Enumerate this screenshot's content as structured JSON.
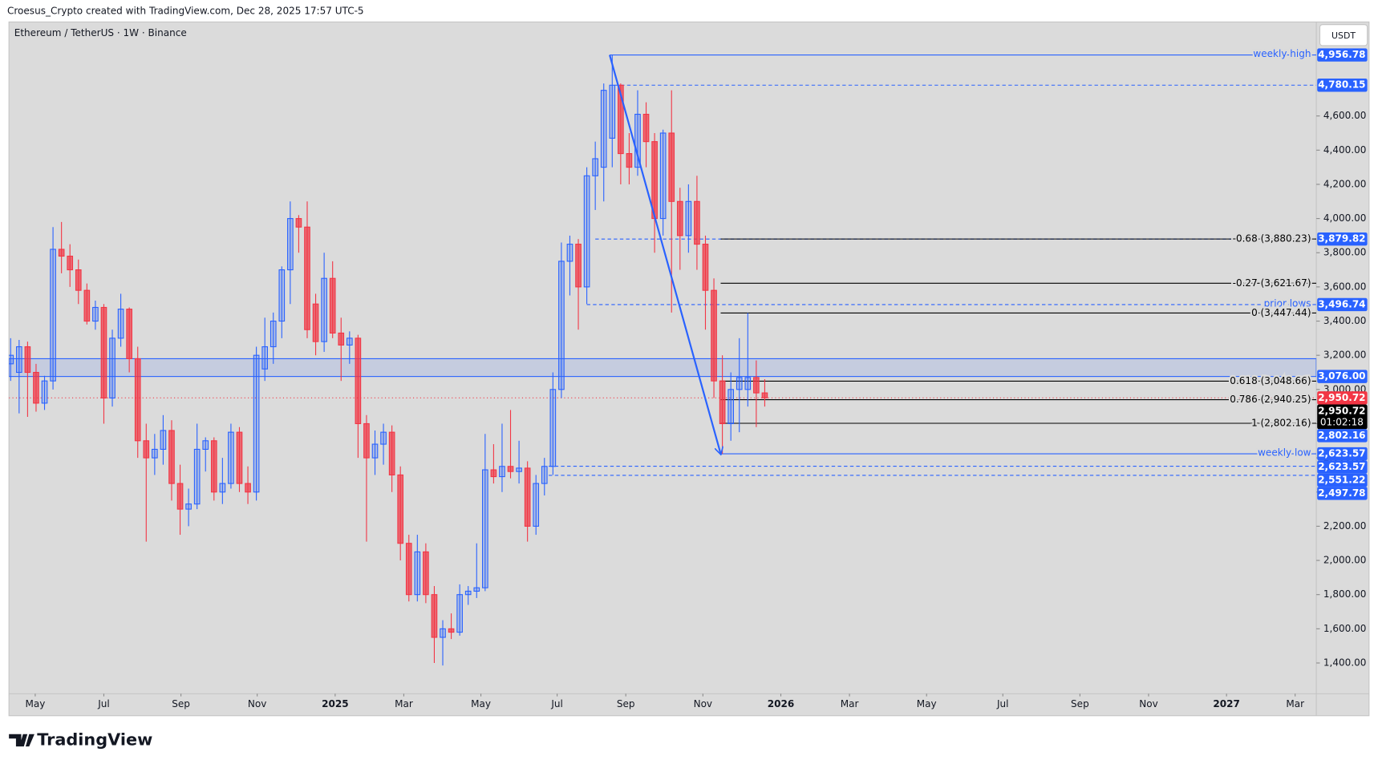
{
  "chart_data": {
    "type": "candlestick",
    "credit": "Croesus_Crypto created with TradingView.com, Dec 28, 2025 17:57 UTC-5",
    "title": "Ethereum / TetherUS · 1W · Binance",
    "currency": "USDT",
    "brand": "TradingView",
    "countdown": "01:02:18",
    "up_color": "#2962ff",
    "down_color": "#f23645",
    "open": [
      3150,
      3100,
      3250,
      3100,
      2920,
      3050,
      3820,
      3780,
      3700,
      3580,
      3400,
      3480,
      2950,
      3300,
      3470,
      3180,
      2700,
      2600,
      2650,
      2760,
      2450,
      2300,
      2330,
      2650,
      2700,
      2400,
      2450,
      2750,
      2450,
      2400,
      3120,
      3250,
      3400,
      3700,
      4000,
      3950,
      3500,
      3280,
      3650,
      3330,
      3260,
      3300,
      2800,
      2600,
      2680,
      2750,
      2500,
      2100,
      1800,
      2050,
      1800,
      1550,
      1600,
      1580,
      1800,
      1820,
      1840,
      2530,
      2490,
      2550,
      2520,
      2540,
      2200,
      2450,
      2550,
      3000,
      3750,
      3850,
      3600,
      4250,
      4300,
      4470,
      4780,
      4380,
      4300,
      4610,
      4450,
      4000,
      4500,
      4100,
      3900,
      4100,
      3850,
      3580,
      3050,
      2800,
      3000,
      3000,
      3070,
      2980
    ],
    "high": [
      3300,
      3290,
      3280,
      3150,
      3080,
      3950,
      3980,
      3850,
      3760,
      3620,
      3520,
      3500,
      3350,
      3560,
      3480,
      3250,
      2800,
      2740,
      2850,
      2820,
      2560,
      2420,
      2800,
      2720,
      2720,
      2600,
      2800,
      2780,
      2550,
      3250,
      3420,
      3450,
      3720,
      4100,
      4020,
      4100,
      3560,
      3800,
      3750,
      3420,
      3340,
      3320,
      2850,
      2760,
      2800,
      2790,
      2550,
      2150,
      2150,
      2100,
      1850,
      1650,
      1690,
      1860,
      1850,
      2100,
      2740,
      2680,
      2800,
      2880,
      2700,
      2580,
      2500,
      2600,
      3100,
      3860,
      3900,
      3880,
      4300,
      4450,
      4790,
      4956.78,
      4790,
      4500,
      4750,
      4680,
      4500,
      4520,
      4750,
      4180,
      4200,
      4250,
      3900,
      3650,
      3200,
      3100,
      3300,
      3447.44,
      3170,
      3060
    ],
    "low": [
      3050,
      2860,
      2840,
      2870,
      2880,
      3000,
      3680,
      3600,
      3500,
      3380,
      3350,
      2800,
      2900,
      3250,
      3100,
      2600,
      2110,
      2500,
      2560,
      2350,
      2150,
      2200,
      2300,
      2520,
      2350,
      2330,
      2420,
      2400,
      2330,
      2350,
      3050,
      3150,
      3300,
      3500,
      3800,
      3300,
      3200,
      3220,
      3300,
      3050,
      3150,
      2600,
      2110,
      2500,
      2560,
      2400,
      2000,
      1760,
      1760,
      1750,
      1400,
      1385,
      1540,
      1560,
      1740,
      1780,
      1820,
      2450,
      2400,
      2480,
      2450,
      2110,
      2150,
      2380,
      2500,
      2950,
      3550,
      3350,
      3500,
      4050,
      4100,
      4300,
      4200,
      4200,
      4250,
      4300,
      3800,
      3900,
      3450,
      3700,
      3800,
      3700,
      3350,
      2950,
      2623.57,
      2700,
      2750,
      2900,
      2780,
      2900
    ],
    "close": [
      3200,
      3250,
      3100,
      2920,
      3050,
      3820,
      3780,
      3700,
      3580,
      3400,
      3480,
      2950,
      3300,
      3470,
      3180,
      2700,
      2600,
      2650,
      2760,
      2450,
      2300,
      2330,
      2650,
      2700,
      2400,
      2450,
      2750,
      2450,
      2400,
      3200,
      3250,
      3400,
      3700,
      4000,
      3950,
      3350,
      3280,
      3650,
      3330,
      3260,
      3300,
      2800,
      2600,
      2680,
      2750,
      2500,
      2100,
      1800,
      2050,
      1800,
      1550,
      1600,
      1580,
      1800,
      1820,
      1840,
      2530,
      2490,
      2550,
      2520,
      2540,
      2200,
      2450,
      2550,
      3000,
      3750,
      3850,
      3600,
      4250,
      4350,
      4750,
      4780,
      4380,
      4300,
      4610,
      4450,
      4000,
      4500,
      4100,
      3900,
      4100,
      3850,
      3580,
      3050,
      2800,
      3000,
      3070,
      3070,
      2980,
      2950.72
    ],
    "xlim": [
      -0.2,
      154.1
    ],
    "xticks": [
      {
        "value": 2.9,
        "label": "May"
      },
      {
        "value": 11.0,
        "label": "Jul"
      },
      {
        "value": 20.1,
        "label": "Sep"
      },
      {
        "value": 29.1,
        "label": "Nov"
      },
      {
        "value": 38.3,
        "label": "2025"
      },
      {
        "value": 46.4,
        "label": "Mar"
      },
      {
        "value": 55.5,
        "label": "May"
      },
      {
        "value": 64.5,
        "label": "Jul"
      },
      {
        "value": 72.6,
        "label": "Sep"
      },
      {
        "value": 81.7,
        "label": "Nov"
      },
      {
        "value": 90.9,
        "label": "2026"
      },
      {
        "value": 99.0,
        "label": "Mar"
      },
      {
        "value": 108.1,
        "label": "May"
      },
      {
        "value": 117.1,
        "label": "Jul"
      },
      {
        "value": 126.2,
        "label": "Sep"
      },
      {
        "value": 134.3,
        "label": "Nov"
      },
      {
        "value": 143.5,
        "label": "2027"
      },
      {
        "value": 151.6,
        "label": "Mar"
      }
    ],
    "ylim": [
      1220,
      5150
    ],
    "yticks": [
      {
        "value": 1400,
        "label": "1,400.00"
      },
      {
        "value": 1600,
        "label": "1,600.00"
      },
      {
        "value": 1800,
        "label": "1,800.00"
      },
      {
        "value": 2000,
        "label": "2,000.00"
      },
      {
        "value": 2200,
        "label": "2,200.00"
      },
      {
        "value": 2400,
        "label": "2,400.00"
      },
      {
        "value": 2600,
        "label": "2,600.00"
      },
      {
        "value": 2800,
        "label": "2,800.00"
      },
      {
        "value": 3000,
        "label": "3,000.00"
      },
      {
        "value": 3200,
        "label": "3,200.00"
      },
      {
        "value": 3400,
        "label": "3,400.00"
      },
      {
        "value": 3600,
        "label": "3,600.00"
      },
      {
        "value": 3800,
        "label": "3,800.00"
      },
      {
        "value": 4000,
        "label": "4,000.00"
      },
      {
        "value": 4200,
        "label": "4,200.00"
      },
      {
        "value": 4400,
        "label": "4,400.00"
      },
      {
        "value": 4600,
        "label": "4,600.00"
      }
    ],
    "zone": {
      "low": 3076,
      "high": 3180,
      "color": "#2962ff"
    },
    "levels": [
      {
        "value": 4956.78,
        "text": "weekly high",
        "color": "#2962ff"
      },
      {
        "value": 4780.15,
        "color": "#2962ff",
        "dash": true
      },
      {
        "value": 3879.82,
        "color": "#2962ff",
        "dash": true
      },
      {
        "value": 3880.23,
        "text": "-0.68 (3,880.23)",
        "color": "#000000"
      },
      {
        "value": 3621.67,
        "text": "-0.27 (3,621.67)",
        "color": "#000000"
      },
      {
        "value": 3496.74,
        "text": "prior lows",
        "color": "#2962ff",
        "dash": true
      },
      {
        "value": 3447.44,
        "text": "0 (3,447.44)",
        "color": "#000000"
      },
      {
        "value": 3048.66,
        "text": "0.618 (3,048.66)",
        "color": "#000000"
      },
      {
        "value": 2940.25,
        "text": "0.786 (2,940.25)",
        "color": "#000000"
      },
      {
        "value": 2802.16,
        "text": "1 (2,802.16)",
        "color": "#000000"
      },
      {
        "value": 2623.57,
        "text": "weekly low",
        "color": "#2962ff"
      },
      {
        "value": 2551.22,
        "color": "#2962ff",
        "dash": true
      },
      {
        "value": 2497.78,
        "color": "#2962ff",
        "dash": true
      }
    ],
    "price_tags": [
      {
        "value": 4956.78,
        "label": "4,956.78",
        "color": "#2962ff"
      },
      {
        "value": 4780.15,
        "label": "4,780.15",
        "color": "#2962ff"
      },
      {
        "value": 3879.82,
        "label": "3,879.82",
        "color": "#2962ff"
      },
      {
        "value": 3496.74,
        "label": "3,496.74",
        "color": "#2962ff"
      },
      {
        "value": 3076,
        "label": "3,076.00",
        "color": "#2962ff"
      },
      {
        "value": 2950.72,
        "label": "2,950.72",
        "color": "#f23645"
      },
      {
        "value": 2950.72,
        "label": "2,950.72",
        "color": "#000000",
        "timer": true
      },
      {
        "value": 2802.16,
        "label": "2,802.16",
        "color": "#2962ff"
      },
      {
        "value": 2623.57,
        "label": "2,623.57",
        "color": "#2962ff"
      },
      {
        "value": 2623.57,
        "label": "2,623.57",
        "color": "#2962ff"
      },
      {
        "value": 2551.22,
        "label": "2,551.22",
        "color": "#2962ff"
      },
      {
        "value": 2497.78,
        "label": "2,497.78",
        "color": "#2962ff"
      }
    ]
  }
}
